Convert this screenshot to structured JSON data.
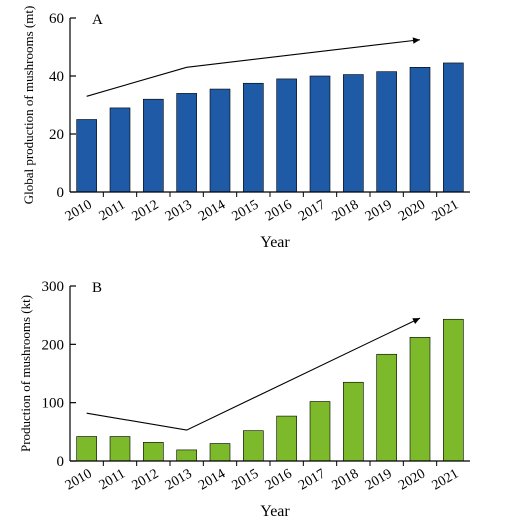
{
  "colors": {
    "panel_a_bar": "#1f5aa6",
    "panel_b_bar": "#7dba2b",
    "axis": "#000000"
  },
  "chart_data": [
    {
      "type": "bar",
      "panel_label": "A",
      "categories": [
        "2010",
        "2011",
        "2012",
        "2013",
        "2014",
        "2015",
        "2016",
        "2017",
        "2018",
        "2019",
        "2020",
        "2021"
      ],
      "values": [
        25,
        29,
        32,
        34,
        35.5,
        37.5,
        39,
        40,
        40.5,
        41.5,
        43,
        44.5
      ],
      "xlabel": "Year",
      "ylabel": "Global production of mushrooms (mt)",
      "ylim": [
        0,
        60
      ],
      "yticks": [
        0,
        20,
        40,
        60
      ],
      "grid": false,
      "trend_arrow": {
        "from": {
          "x": "2010",
          "y": 33
        },
        "via": {
          "x": "2013",
          "y": 43
        },
        "to": {
          "x": "2020",
          "y": 52.5
        }
      }
    },
    {
      "type": "bar",
      "panel_label": "B",
      "categories": [
        "2010",
        "2011",
        "2012",
        "2013",
        "2014",
        "2015",
        "2016",
        "2017",
        "2018",
        "2019",
        "2020",
        "2021"
      ],
      "values": [
        42,
        42,
        32,
        19,
        30,
        52,
        77,
        102,
        135,
        183,
        212,
        243
      ],
      "xlabel": "Year",
      "ylabel": "Production of mushrooms (kt)",
      "ylim": [
        0,
        300
      ],
      "yticks": [
        0,
        100,
        200,
        300
      ],
      "grid": false,
      "trend_arrow": {
        "from": {
          "x": "2010",
          "y": 82
        },
        "via": {
          "x": "2013",
          "y": 53
        },
        "to": {
          "x": "2020",
          "y": 245
        }
      }
    }
  ]
}
